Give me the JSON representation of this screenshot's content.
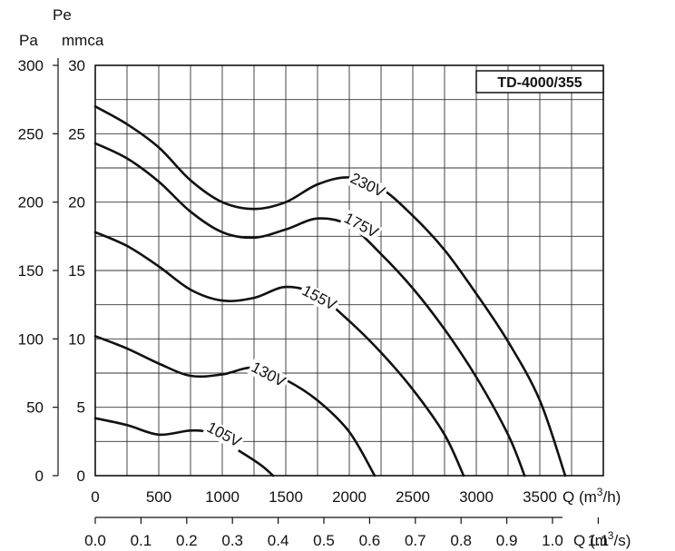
{
  "chart_data": {
    "type": "line",
    "title": "",
    "model_label": "TD-4000/355",
    "ylabel_pa": "Pa",
    "ylabel_pe": "Pe",
    "ylabel_mmca": "mmca",
    "xlabel_m3h": "Q (m",
    "xlabel_m3s": "Q (m",
    "xlabel_sup": "3",
    "xlabel_m3h_tail": "/h)",
    "xlabel_m3s_tail": "/s)",
    "xlim": [
      0,
      4000
    ],
    "ylim": [
      0,
      300
    ],
    "grid": true,
    "x_ticks_m3h": [
      "0",
      "500",
      "1000",
      "1500",
      "2000",
      "2500",
      "3000",
      "3500"
    ],
    "x_ticks_m3s": [
      "0.0",
      "0.1",
      "0.2",
      "0.3",
      "0.4",
      "0.5",
      "0.6",
      "0.7",
      "0.8",
      "0.9",
      "1.0",
      "1.1"
    ],
    "y_ticks_pa": [
      "0",
      "50",
      "100",
      "150",
      "200",
      "250",
      "300"
    ],
    "y_ticks_mmca": [
      "0",
      "5",
      "10",
      "15",
      "20",
      "25",
      "30"
    ],
    "series": [
      {
        "name": "230V",
        "label_at": [
          2000,
          215
        ],
        "label_angle": 26,
        "points": [
          [
            0,
            270
          ],
          [
            250,
            257
          ],
          [
            500,
            240
          ],
          [
            750,
            216
          ],
          [
            1000,
            200
          ],
          [
            1250,
            195
          ],
          [
            1500,
            200
          ],
          [
            1750,
            213
          ],
          [
            2000,
            218
          ],
          [
            2250,
            210
          ],
          [
            2500,
            190
          ],
          [
            2750,
            165
          ],
          [
            3000,
            133
          ],
          [
            3250,
            98
          ],
          [
            3500,
            55
          ],
          [
            3700,
            0
          ]
        ]
      },
      {
        "name": "175V",
        "label_at": [
          1950,
          186
        ],
        "label_angle": 28,
        "points": [
          [
            0,
            243
          ],
          [
            250,
            232
          ],
          [
            500,
            215
          ],
          [
            750,
            193
          ],
          [
            1000,
            178
          ],
          [
            1250,
            174
          ],
          [
            1500,
            180
          ],
          [
            1750,
            188
          ],
          [
            2000,
            183
          ],
          [
            2250,
            162
          ],
          [
            2500,
            137
          ],
          [
            2750,
            107
          ],
          [
            3000,
            72
          ],
          [
            3250,
            30
          ],
          [
            3380,
            0
          ]
        ]
      },
      {
        "name": "155V",
        "label_at": [
          1620,
          133
        ],
        "label_angle": 28,
        "points": [
          [
            0,
            178
          ],
          [
            250,
            168
          ],
          [
            500,
            153
          ],
          [
            750,
            136
          ],
          [
            1000,
            128
          ],
          [
            1250,
            130
          ],
          [
            1500,
            138
          ],
          [
            1750,
            132
          ],
          [
            2000,
            113
          ],
          [
            2250,
            90
          ],
          [
            2500,
            63
          ],
          [
            2750,
            30
          ],
          [
            2900,
            0
          ]
        ]
      },
      {
        "name": "130V",
        "label_at": [
          1220,
          77
        ],
        "label_angle": 28,
        "points": [
          [
            0,
            102
          ],
          [
            250,
            93
          ],
          [
            500,
            82
          ],
          [
            750,
            73
          ],
          [
            1000,
            74
          ],
          [
            1250,
            79
          ],
          [
            1500,
            70
          ],
          [
            1750,
            55
          ],
          [
            2000,
            32
          ],
          [
            2200,
            0
          ]
        ]
      },
      {
        "name": "105V",
        "label_at": [
          870,
          33
        ],
        "label_angle": 28,
        "points": [
          [
            0,
            42
          ],
          [
            250,
            37
          ],
          [
            500,
            30
          ],
          [
            750,
            33
          ],
          [
            900,
            31
          ],
          [
            1100,
            20
          ],
          [
            1300,
            8
          ],
          [
            1400,
            0
          ]
        ]
      }
    ]
  }
}
